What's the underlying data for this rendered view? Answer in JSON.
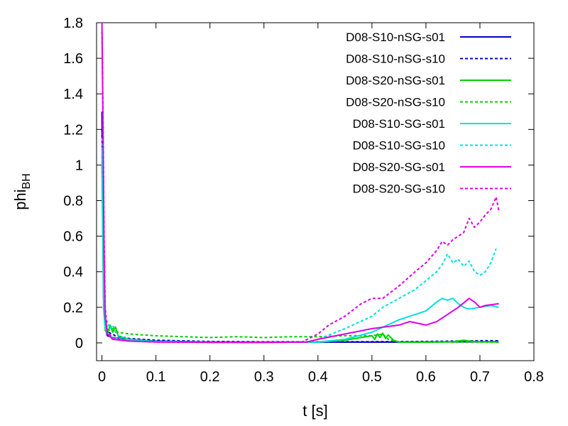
{
  "chart_data": {
    "type": "line",
    "xlabel": "t [s]",
    "ylabel": {
      "base": "phi",
      "subscript": "BH"
    },
    "xlim": [
      -0.01,
      0.8
    ],
    "ylim": [
      -0.1,
      1.8
    ],
    "xticks": [
      "0",
      "0.1",
      "0.2",
      "0.3",
      "0.4",
      "0.5",
      "0.6",
      "0.7",
      "0.8"
    ],
    "yticks": [
      "0",
      "0.2",
      "0.4",
      "0.6",
      "0.8",
      "1",
      "1.2",
      "1.4",
      "1.6",
      "1.8"
    ],
    "grid": false,
    "legend_position": "top-right",
    "series": [
      {
        "name": "D08-S10-nSG-s01",
        "color": "#0000c8",
        "dash": "solid",
        "points": [
          [
            0,
            1.3
          ],
          [
            0.003,
            0.25
          ],
          [
            0.006,
            0.08
          ],
          [
            0.01,
            0.04
          ],
          [
            0.02,
            0.03
          ],
          [
            0.05,
            0.02
          ],
          [
            0.1,
            0.01
          ],
          [
            0.2,
            0.005
          ],
          [
            0.3,
            0.004
          ],
          [
            0.4,
            0.004
          ],
          [
            0.5,
            0.004
          ],
          [
            0.6,
            0.005
          ],
          [
            0.7,
            0.006
          ],
          [
            0.735,
            0.006
          ]
        ]
      },
      {
        "name": "D08-S10-nSG-s10",
        "color": "#0000c8",
        "dash": "dotted",
        "points": [
          [
            0,
            1.2
          ],
          [
            0.003,
            0.3
          ],
          [
            0.006,
            0.1
          ],
          [
            0.012,
            0.06
          ],
          [
            0.025,
            0.04
          ],
          [
            0.05,
            0.025
          ],
          [
            0.1,
            0.015
          ],
          [
            0.2,
            0.008
          ],
          [
            0.3,
            0.006
          ],
          [
            0.4,
            0.006
          ],
          [
            0.5,
            0.007
          ],
          [
            0.6,
            0.008
          ],
          [
            0.65,
            0.01
          ],
          [
            0.7,
            0.012
          ],
          [
            0.735,
            0.012
          ]
        ]
      },
      {
        "name": "D08-S20-nSG-s01",
        "color": "#00d000",
        "dash": "solid",
        "points": [
          [
            0,
            1.0
          ],
          [
            0.003,
            0.2
          ],
          [
            0.006,
            0.07
          ],
          [
            0.01,
            0.05
          ],
          [
            0.015,
            0.1
          ],
          [
            0.02,
            0.06
          ],
          [
            0.025,
            0.09
          ],
          [
            0.03,
            0.04
          ],
          [
            0.05,
            0.02
          ],
          [
            0.1,
            0.008
          ],
          [
            0.2,
            0.004
          ],
          [
            0.3,
            0.003
          ],
          [
            0.4,
            0.004
          ],
          [
            0.45,
            0.015
          ],
          [
            0.48,
            0.03
          ],
          [
            0.5,
            0.04
          ],
          [
            0.505,
            0.02
          ],
          [
            0.51,
            0.05
          ],
          [
            0.515,
            0.03
          ],
          [
            0.52,
            0.055
          ],
          [
            0.525,
            0.025
          ],
          [
            0.53,
            0.045
          ],
          [
            0.54,
            0.015
          ],
          [
            0.55,
            0.005
          ],
          [
            0.6,
            0.004
          ],
          [
            0.65,
            0.006
          ],
          [
            0.67,
            0.015
          ],
          [
            0.68,
            0.01
          ],
          [
            0.7,
            0.006
          ],
          [
            0.735,
            0.005
          ]
        ]
      },
      {
        "name": "D08-S20-nSG-s10",
        "color": "#00d000",
        "dash": "dotted",
        "points": [
          [
            0,
            1.05
          ],
          [
            0.003,
            0.25
          ],
          [
            0.006,
            0.1
          ],
          [
            0.012,
            0.07
          ],
          [
            0.02,
            0.08
          ],
          [
            0.03,
            0.06
          ],
          [
            0.05,
            0.05
          ],
          [
            0.1,
            0.04
          ],
          [
            0.15,
            0.035
          ],
          [
            0.2,
            0.03
          ],
          [
            0.25,
            0.035
          ],
          [
            0.3,
            0.03
          ],
          [
            0.35,
            0.035
          ],
          [
            0.4,
            0.035
          ],
          [
            0.45,
            0.04
          ],
          [
            0.5,
            0.04
          ],
          [
            0.52,
            0.05
          ],
          [
            0.53,
            0.02
          ],
          [
            0.55,
            0.005
          ],
          [
            0.6,
            0.004
          ],
          [
            0.65,
            0.004
          ],
          [
            0.7,
            0.004
          ],
          [
            0.735,
            0.004
          ]
        ]
      },
      {
        "name": "D08-S10-SG-s01",
        "color": "#00e0e0",
        "dash": "solid",
        "points": [
          [
            0,
            1.1
          ],
          [
            0.003,
            0.25
          ],
          [
            0.006,
            0.08
          ],
          [
            0.01,
            0.05
          ],
          [
            0.02,
            0.03
          ],
          [
            0.05,
            0.015
          ],
          [
            0.1,
            0.008
          ],
          [
            0.2,
            0.004
          ],
          [
            0.3,
            0.003
          ],
          [
            0.4,
            0.005
          ],
          [
            0.45,
            0.02
          ],
          [
            0.5,
            0.06
          ],
          [
            0.55,
            0.13
          ],
          [
            0.6,
            0.18
          ],
          [
            0.62,
            0.23
          ],
          [
            0.63,
            0.25
          ],
          [
            0.64,
            0.24
          ],
          [
            0.65,
            0.25
          ],
          [
            0.66,
            0.22
          ],
          [
            0.67,
            0.2
          ],
          [
            0.68,
            0.19
          ],
          [
            0.7,
            0.2
          ],
          [
            0.72,
            0.21
          ],
          [
            0.735,
            0.2
          ]
        ]
      },
      {
        "name": "D08-S10-SG-s10",
        "color": "#00e0e0",
        "dash": "dotted",
        "points": [
          [
            0,
            1.15
          ],
          [
            0.003,
            0.3
          ],
          [
            0.006,
            0.1
          ],
          [
            0.01,
            0.12
          ],
          [
            0.015,
            0.08
          ],
          [
            0.02,
            0.1
          ],
          [
            0.025,
            0.06
          ],
          [
            0.03,
            0.04
          ],
          [
            0.05,
            0.02
          ],
          [
            0.1,
            0.008
          ],
          [
            0.2,
            0.004
          ],
          [
            0.3,
            0.003
          ],
          [
            0.38,
            0.005
          ],
          [
            0.4,
            0.02
          ],
          [
            0.45,
            0.08
          ],
          [
            0.5,
            0.15
          ],
          [
            0.52,
            0.2
          ],
          [
            0.55,
            0.25
          ],
          [
            0.58,
            0.3
          ],
          [
            0.6,
            0.35
          ],
          [
            0.62,
            0.4
          ],
          [
            0.63,
            0.44
          ],
          [
            0.64,
            0.5
          ],
          [
            0.65,
            0.45
          ],
          [
            0.66,
            0.47
          ],
          [
            0.67,
            0.43
          ],
          [
            0.68,
            0.46
          ],
          [
            0.69,
            0.4
          ],
          [
            0.7,
            0.38
          ],
          [
            0.71,
            0.4
          ],
          [
            0.72,
            0.45
          ],
          [
            0.73,
            0.53
          ]
        ]
      },
      {
        "name": "D08-S20-SG-s01",
        "color": "#e000e0",
        "dash": "solid",
        "points": [
          [
            0,
            1.8
          ],
          [
            0.002,
            1.2
          ],
          [
            0.004,
            0.5
          ],
          [
            0.006,
            0.15
          ],
          [
            0.01,
            0.05
          ],
          [
            0.02,
            0.02
          ],
          [
            0.05,
            0.01
          ],
          [
            0.1,
            0.005
          ],
          [
            0.2,
            0.003
          ],
          [
            0.3,
            0.003
          ],
          [
            0.38,
            0.005
          ],
          [
            0.4,
            0.02
          ],
          [
            0.45,
            0.05
          ],
          [
            0.5,
            0.08
          ],
          [
            0.55,
            0.1
          ],
          [
            0.57,
            0.12
          ],
          [
            0.6,
            0.1
          ],
          [
            0.62,
            0.12
          ],
          [
            0.64,
            0.16
          ],
          [
            0.66,
            0.2
          ],
          [
            0.68,
            0.25
          ],
          [
            0.69,
            0.23
          ],
          [
            0.7,
            0.2
          ],
          [
            0.71,
            0.21
          ],
          [
            0.735,
            0.22
          ]
        ]
      },
      {
        "name": "D08-S20-SG-s10",
        "color": "#e000e0",
        "dash": "dotted",
        "points": [
          [
            0,
            1.75
          ],
          [
            0.002,
            1.3
          ],
          [
            0.004,
            0.6
          ],
          [
            0.006,
            0.2
          ],
          [
            0.01,
            0.06
          ],
          [
            0.02,
            0.03
          ],
          [
            0.05,
            0.01
          ],
          [
            0.1,
            0.005
          ],
          [
            0.2,
            0.003
          ],
          [
            0.3,
            0.003
          ],
          [
            0.37,
            0.004
          ],
          [
            0.4,
            0.05
          ],
          [
            0.42,
            0.1
          ],
          [
            0.45,
            0.15
          ],
          [
            0.48,
            0.22
          ],
          [
            0.5,
            0.25
          ],
          [
            0.52,
            0.25
          ],
          [
            0.55,
            0.32
          ],
          [
            0.58,
            0.4
          ],
          [
            0.6,
            0.45
          ],
          [
            0.62,
            0.52
          ],
          [
            0.63,
            0.57
          ],
          [
            0.64,
            0.55
          ],
          [
            0.65,
            0.58
          ],
          [
            0.66,
            0.6
          ],
          [
            0.67,
            0.62
          ],
          [
            0.68,
            0.7
          ],
          [
            0.69,
            0.65
          ],
          [
            0.7,
            0.68
          ],
          [
            0.71,
            0.72
          ],
          [
            0.72,
            0.75
          ],
          [
            0.73,
            0.82
          ],
          [
            0.735,
            0.74
          ]
        ]
      }
    ]
  }
}
